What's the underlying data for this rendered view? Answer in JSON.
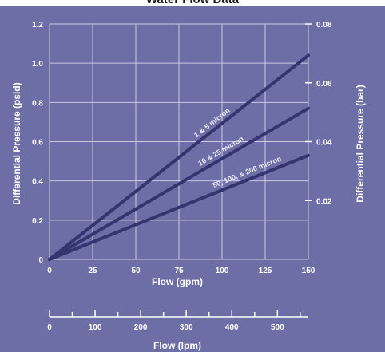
{
  "chart_data": {
    "type": "line",
    "title": "Water Flow Data",
    "xlabel": "Flow (gpm)",
    "ylabel": "Differential Pressure (psid)",
    "y2label": "Differential Pressure (bar)",
    "x2label": "Flow (lpm)",
    "xlim": [
      0,
      150
    ],
    "ylim": [
      0,
      1.2
    ],
    "y2lim": [
      0,
      0.08
    ],
    "x2lim": [
      0,
      567.8
    ],
    "grid": true,
    "x_ticks": [
      0,
      25,
      50,
      75,
      100,
      125,
      150
    ],
    "y_ticks": [
      "0",
      "0.2",
      "0.4",
      "0.6",
      "0.8",
      "1.0",
      "1.2"
    ],
    "y2_ticks": [
      "0.02",
      "0.04",
      "0.06",
      "0.08"
    ],
    "x2_ticks": [
      0,
      100,
      200,
      300,
      400,
      500
    ],
    "series": [
      {
        "name": "1 & 5 micron",
        "x": [
          0,
          150
        ],
        "y": [
          0,
          1.04
        ]
      },
      {
        "name": "10 & 25 micron",
        "x": [
          0,
          150
        ],
        "y": [
          0,
          0.77
        ]
      },
      {
        "name": "50, 100, & 200 micron",
        "x": [
          0,
          150
        ],
        "y": [
          0,
          0.53
        ]
      }
    ],
    "line_color": "#34356f"
  }
}
